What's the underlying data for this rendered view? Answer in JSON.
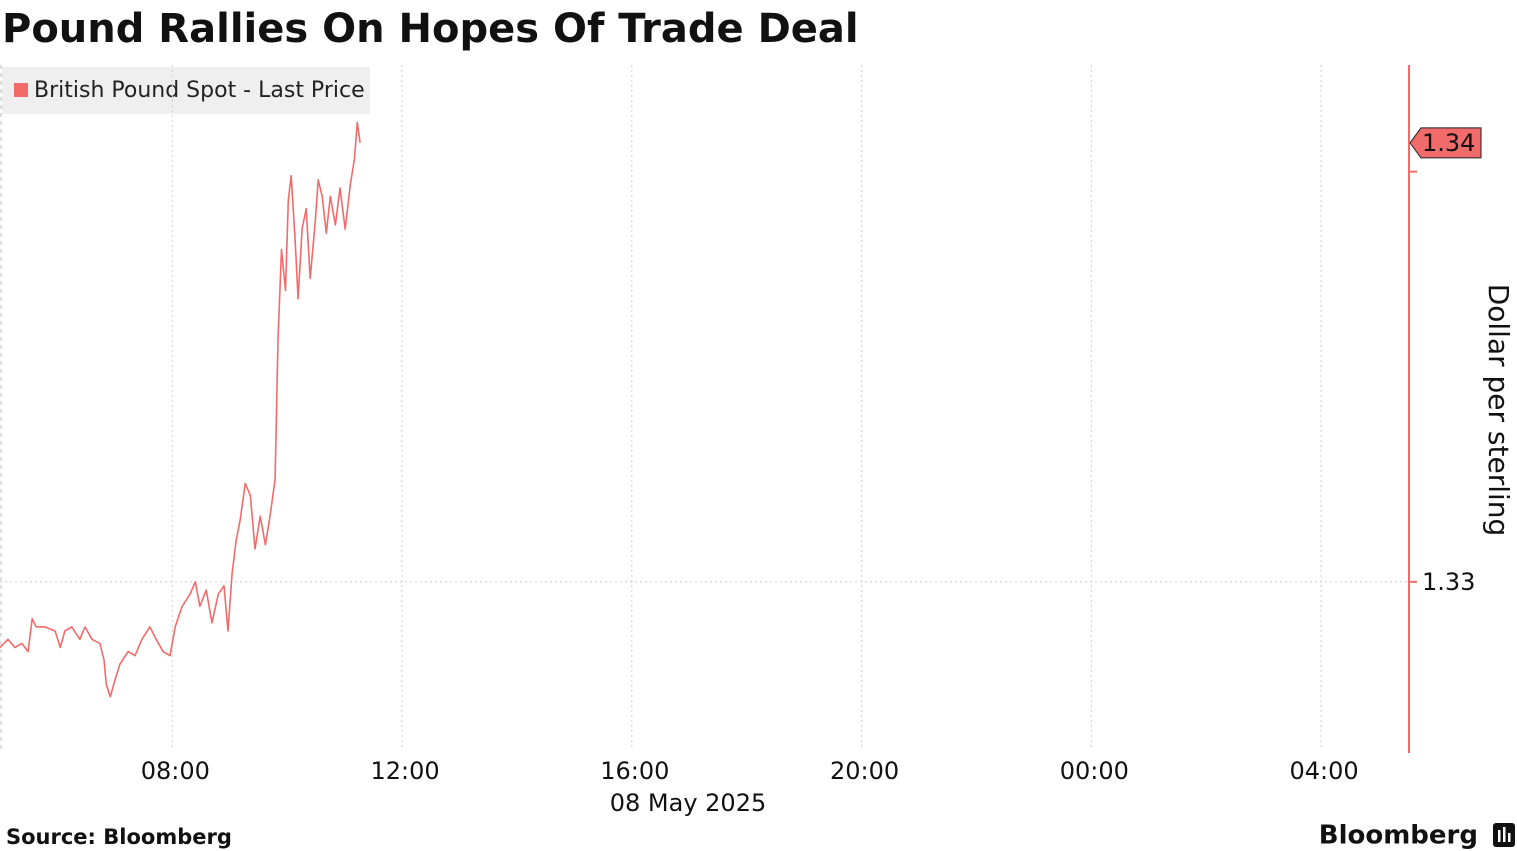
{
  "chart_data": {
    "type": "line",
    "title": "Pound Rallies On Hopes Of Trade Deal",
    "x_label": "08 May 2025",
    "y_label": "Dollar per sterling",
    "source": "Source: Bloomberg",
    "brand": "Bloomberg",
    "xlim": [
      5,
      29.53
    ],
    "xticks": [
      {
        "value": 8,
        "label": "08:00"
      },
      {
        "value": 12,
        "label": "12:00"
      },
      {
        "value": 16,
        "label": "16:00"
      },
      {
        "value": 20,
        "label": "20:00"
      },
      {
        "value": 24,
        "label": "00:00"
      },
      {
        "value": 28,
        "label": "04:00"
      }
    ],
    "ylim": [
      1.3259,
      1.3426
    ],
    "yticks": [
      1.33,
      1.34
    ],
    "grid": true,
    "last_price_label": {
      "value": 1.3407,
      "label": "1.34"
    },
    "series": [
      {
        "name": "British Pound Spot - Last Price",
        "color": "#f26b6b",
        "x": [
          5,
          5.14,
          5.26,
          5.38,
          5.49,
          5.56,
          5.63,
          5.78,
          5.96,
          6.05,
          6.13,
          6.25,
          6.39,
          6.48,
          6.6,
          6.74,
          6.81,
          6.85,
          6.92,
          7,
          7.09,
          7.23,
          7.35,
          7.47,
          7.61,
          7.72,
          7.84,
          7.96,
          8.05,
          8.17,
          8.31,
          8.4,
          8.48,
          8.59,
          8.69,
          8.8,
          8.9,
          8.97,
          9.04,
          9.11,
          9.18,
          9.27,
          9.36,
          9.44,
          9.53,
          9.62,
          9.7,
          9.79,
          9.84,
          9.9,
          9.97,
          10.02,
          10.07,
          10.14,
          10.19,
          10.26,
          10.33,
          10.4,
          10.49,
          10.54,
          10.61,
          10.68,
          10.75,
          10.84,
          10.92,
          11.01,
          11.1,
          11.17,
          11.22,
          11.27
        ],
        "values": [
          1.3284,
          1.3286,
          1.3284,
          1.3285,
          1.3283,
          1.3291,
          1.3289,
          1.3289,
          1.3288,
          1.3284,
          1.3288,
          1.3289,
          1.3286,
          1.3289,
          1.3286,
          1.3285,
          1.3281,
          1.3275,
          1.3272,
          1.3276,
          1.328,
          1.3283,
          1.3282,
          1.3286,
          1.3289,
          1.3286,
          1.3283,
          1.3282,
          1.3289,
          1.3294,
          1.3297,
          1.33,
          1.3294,
          1.3298,
          1.329,
          1.3297,
          1.3299,
          1.3288,
          1.3302,
          1.331,
          1.3315,
          1.3324,
          1.3321,
          1.3308,
          1.3316,
          1.3309,
          1.3316,
          1.3325,
          1.3359,
          1.3381,
          1.3371,
          1.3393,
          1.3399,
          1.3383,
          1.3369,
          1.3386,
          1.3391,
          1.3374,
          1.3388,
          1.3398,
          1.3394,
          1.3385,
          1.3394,
          1.3387,
          1.3396,
          1.3386,
          1.3397,
          1.3403,
          1.3412,
          1.3407
        ]
      }
    ]
  }
}
